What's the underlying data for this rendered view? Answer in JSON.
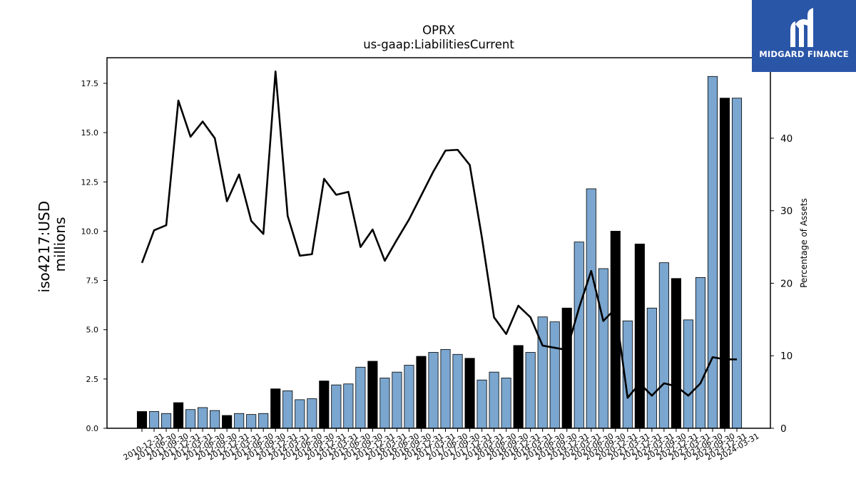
{
  "logo": {
    "text": "MIDGARD FINANCE"
  },
  "chart_data": {
    "type": "bar",
    "title": "OPRX",
    "subtitle": "us-gaap:LiabilitiesCurrent",
    "ylabel": "iso4217:USD\nmillions",
    "y2label": "Percentage of Assets",
    "ylim": [
      0,
      18.8
    ],
    "y2lim": [
      0,
      51.1
    ],
    "yticks": [
      "0.0",
      "2.5",
      "5.0",
      "7.5",
      "10.0",
      "12.5",
      "15.0",
      "17.5"
    ],
    "y2ticks": [
      "0",
      "10",
      "20",
      "30",
      "40"
    ],
    "colors": {
      "fiscal_year_end": "#000000",
      "quarter": "#7aa6cf",
      "line": "#000000"
    },
    "categories": [
      "2010-12-31",
      "2011-06-30",
      "2011-09-30",
      "2011-12-31",
      "2012-03-31",
      "2012-06-30",
      "2012-09-30",
      "2012-12-31",
      "2013-03-31",
      "2013-06-30",
      "2013-09-30",
      "2013-12-31",
      "2014-03-31",
      "2014-06-30",
      "2014-09-30",
      "2014-12-31",
      "2015-03-31",
      "2015-06-30",
      "2015-09-30",
      "2015-12-31",
      "2016-03-31",
      "2016-06-30",
      "2016-09-30",
      "2016-12-31",
      "2017-03-31",
      "2017-06-30",
      "2017-09-30",
      "2017-12-31",
      "2018-03-31",
      "2018-06-30",
      "2018-09-30",
      "2018-12-31",
      "2019-03-31",
      "2019-06-30",
      "2019-09-30",
      "2019-12-31",
      "2020-03-31",
      "2020-06-30",
      "2020-09-30",
      "2020-12-31",
      "2021-03-31",
      "2021-12-31",
      "2022-03-31",
      "2022-09-30",
      "2022-12-31",
      "2023-03-31",
      "2023-06-30",
      "2023-09-30",
      "2023-12-31",
      "2024-03-31"
    ],
    "series": [
      {
        "type": "bar",
        "values": [
          0.85,
          0.85,
          0.75,
          1.3,
          0.95,
          1.05,
          0.9,
          0.65,
          0.75,
          0.7,
          0.75,
          2.0,
          1.9,
          1.45,
          1.5,
          2.4,
          2.2,
          2.25,
          3.1,
          3.4,
          2.55,
          2.85,
          3.2,
          3.65,
          3.85,
          4.0,
          3.75,
          3.55,
          2.45,
          2.85,
          2.55,
          4.2,
          3.85,
          5.65,
          5.4,
          6.1,
          9.45,
          12.15,
          8.1,
          10.0,
          5.45,
          9.35,
          6.1,
          8.4,
          7.6,
          5.5,
          7.65,
          17.85,
          16.75,
          16.75
        ],
        "fiscal_year_end": [
          true,
          false,
          false,
          true,
          false,
          false,
          false,
          true,
          false,
          false,
          false,
          true,
          false,
          false,
          false,
          true,
          false,
          false,
          false,
          true,
          false,
          false,
          false,
          true,
          false,
          false,
          false,
          true,
          false,
          false,
          false,
          true,
          false,
          false,
          false,
          true,
          false,
          false,
          false,
          true,
          false,
          true,
          false,
          false,
          true,
          false,
          false,
          false,
          true,
          false
        ]
      },
      {
        "type": "line",
        "axis": "right",
        "values": [
          22.8,
          27.3,
          28.0,
          45.2,
          40.2,
          42.3,
          40.0,
          31.3,
          35.0,
          28.6,
          26.8,
          49.2,
          29.3,
          23.8,
          24.0,
          34.4,
          32.2,
          32.6,
          25.0,
          27.4,
          23.1,
          26.0,
          28.8,
          32.1,
          35.4,
          38.3,
          38.4,
          36.3,
          26.3,
          15.3,
          13.0,
          16.9,
          15.3,
          11.4,
          11.1,
          10.8,
          16.6,
          21.7,
          14.8,
          16.5,
          4.2,
          6.2,
          4.5,
          6.2,
          5.8,
          4.5,
          6.2,
          9.8,
          9.5,
          9.5
        ]
      }
    ]
  }
}
